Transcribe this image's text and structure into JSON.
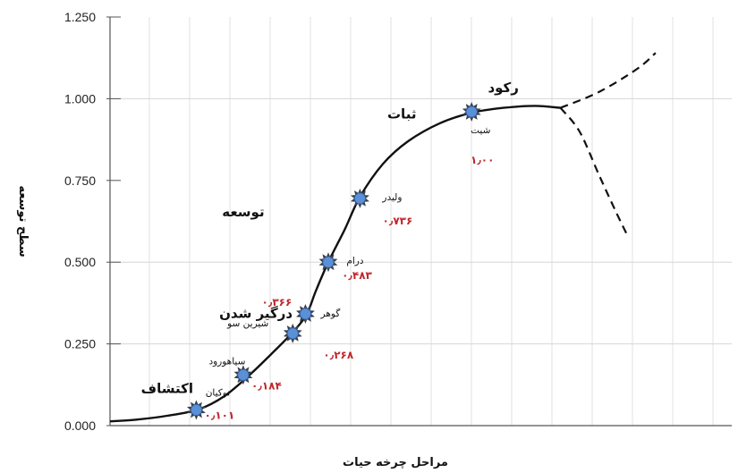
{
  "chart_data": {
    "type": "line",
    "ylabel": "سطح توسعه",
    "xlabel": "مراحل چرخه حیات",
    "ylim": [
      0,
      1.25
    ],
    "y_ticks": [
      "1.250",
      "1.000",
      "0.750",
      "0.500",
      "0.250",
      "0.000"
    ],
    "grid": "vertical",
    "curve": {
      "solid": [
        [
          0,
          0.013
        ],
        [
          0.2,
          0.018
        ],
        [
          0.45,
          0.03
        ],
        [
          0.7,
          0.05
        ],
        [
          0.9,
          0.09
        ],
        [
          1.1,
          0.155
        ],
        [
          1.3,
          0.23
        ],
        [
          1.45,
          0.29
        ],
        [
          1.55,
          0.34
        ],
        [
          1.62,
          0.41
        ],
        [
          1.72,
          0.5
        ],
        [
          1.85,
          0.6
        ],
        [
          1.97,
          0.7
        ],
        [
          2.15,
          0.8
        ],
        [
          2.35,
          0.87
        ],
        [
          2.6,
          0.925
        ],
        [
          2.85,
          0.957
        ],
        [
          3.1,
          0.972
        ],
        [
          3.35,
          0.978
        ],
        [
          3.55,
          0.972
        ]
      ],
      "branch_up": [
        [
          3.55,
          0.972
        ],
        [
          3.85,
          1.02
        ],
        [
          4.15,
          1.09
        ],
        [
          4.3,
          1.14
        ]
      ],
      "branch_down": [
        [
          3.55,
          0.972
        ],
        [
          3.7,
          0.9
        ],
        [
          3.85,
          0.77
        ],
        [
          3.98,
          0.66
        ],
        [
          4.08,
          0.58
        ]
      ]
    },
    "phases": [
      {
        "label": "اکتشاف",
        "x": 0.45,
        "y": 0.1
      },
      {
        "label": "درگیر شدن",
        "x": 1.15,
        "y": 0.33
      },
      {
        "label": "توسعه",
        "x": 1.05,
        "y": 0.64
      },
      {
        "label": "ثبات",
        "x": 2.3,
        "y": 0.94
      },
      {
        "label": "رکود",
        "x": 3.1,
        "y": 1.02
      }
    ],
    "points": [
      {
        "name": "نوکیان",
        "value": "۰٫۱۰۱",
        "x": 0.68,
        "y": 0.048
      },
      {
        "name": "سیاهورود",
        "value": "۰٫۱۸۴",
        "x": 1.05,
        "y": 0.155
      },
      {
        "name": "شیرین سو",
        "value": "",
        "x": 1.44,
        "y": 0.282
      },
      {
        "name": "گوهر",
        "value": "۰٫۳۶۶",
        "x": 1.54,
        "y": 0.342
      },
      {
        "name": "درام",
        "value": "۰٫۴۸۳",
        "x": 1.72,
        "y": 0.5
      },
      {
        "name": "ولیدر",
        "value": "۰٫۷۳۶",
        "x": 1.97,
        "y": 0.695
      },
      {
        "name": "شیت",
        "value": "۱٫۰۰",
        "x": 2.85,
        "y": 0.96
      }
    ],
    "extra_values": [
      {
        "value": "۰٫۲۶۸",
        "x": 1.8,
        "y": 0.205
      }
    ]
  }
}
